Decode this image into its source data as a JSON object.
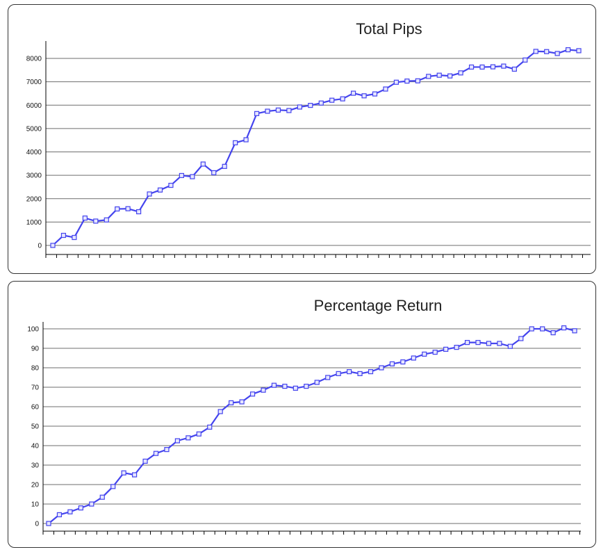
{
  "chart_data": [
    {
      "type": "line",
      "title": "Total Pips",
      "xlabel": "",
      "ylabel": "",
      "ylim": [
        0,
        8000
      ],
      "yticks": [
        0,
        1000,
        2000,
        3000,
        4000,
        5000,
        6000,
        7000,
        8000
      ],
      "grid": true,
      "x_tick_count": 51,
      "color": "#4444ee",
      "values": [
        0,
        430,
        340,
        1170,
        1040,
        1090,
        1560,
        1570,
        1440,
        2200,
        2370,
        2570,
        2990,
        2940,
        3480,
        3110,
        3380,
        4390,
        4520,
        5640,
        5740,
        5790,
        5770,
        5920,
        5990,
        6090,
        6210,
        6270,
        6510,
        6400,
        6480,
        6690,
        6980,
        7030,
        7040,
        7230,
        7280,
        7250,
        7380,
        7630,
        7630,
        7640,
        7670,
        7540,
        7930,
        8300,
        8290,
        8210,
        8370,
        8330
      ]
    },
    {
      "type": "line",
      "title": "Percentage Return",
      "xlabel": "",
      "ylabel": "",
      "ylim": [
        0,
        100
      ],
      "yticks": [
        0,
        10,
        20,
        30,
        40,
        50,
        60,
        70,
        80,
        90,
        100
      ],
      "grid": true,
      "x_tick_count": 51,
      "color": "#4444ee",
      "values": [
        0,
        4.5,
        6,
        8,
        10,
        13.5,
        19,
        26,
        25,
        32,
        36,
        38,
        42.5,
        44,
        46,
        49.5,
        57.5,
        62,
        62.5,
        66.5,
        68.5,
        71,
        70.5,
        69.5,
        70.5,
        72.5,
        75,
        77,
        78,
        77,
        78,
        80,
        82,
        83,
        85,
        87,
        88,
        89.5,
        90.5,
        93,
        93,
        92.5,
        92.5,
        91,
        95,
        100,
        100,
        98,
        100.5,
        99
      ]
    }
  ]
}
